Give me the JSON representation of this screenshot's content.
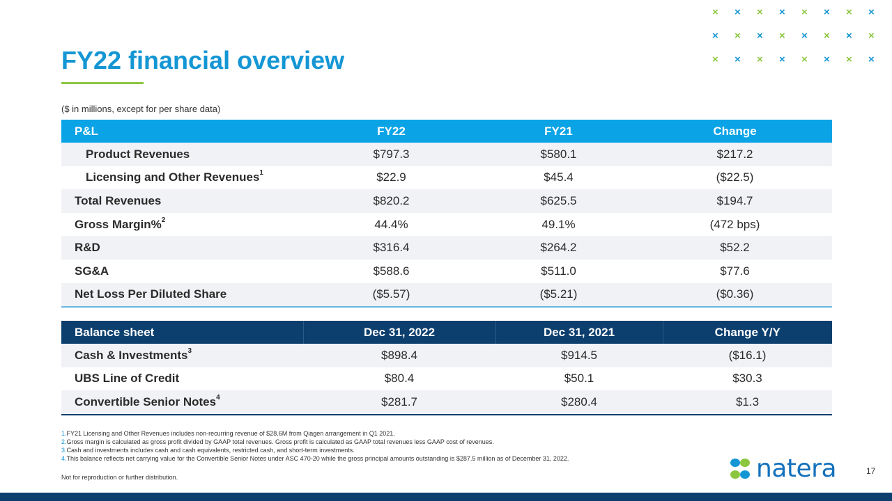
{
  "title": "FY22 financial overview",
  "subtitle": "($ in millions, except for per share data)",
  "colors": {
    "accent_blue": "#1496d4",
    "header_blue": "#0aa3e6",
    "navy": "#0c3f6e",
    "green": "#8cc63f"
  },
  "pl_table": {
    "headers": [
      "P&L",
      "FY22",
      "FY21",
      "Change"
    ],
    "rows": [
      {
        "label": "Product Revenues",
        "sup": "",
        "values": [
          "$797.3",
          "$580.1",
          "$217.2"
        ]
      },
      {
        "label": "Licensing and Other Revenues",
        "sup": "1",
        "values": [
          "$22.9",
          "$45.4",
          "($22.5)"
        ]
      },
      {
        "label": "Total Revenues",
        "sup": "",
        "values": [
          "$820.2",
          "$625.5",
          "$194.7"
        ]
      },
      {
        "label": "Gross Margin%",
        "sup": "2",
        "values": [
          "44.4%",
          "49.1%",
          "(472 bps)"
        ]
      },
      {
        "label": "R&D",
        "sup": "",
        "values": [
          "$316.4",
          "$264.2",
          "$52.2"
        ]
      },
      {
        "label": "SG&A",
        "sup": "",
        "values": [
          "$588.6",
          "$511.0",
          "$77.6"
        ]
      },
      {
        "label": "Net Loss Per Diluted Share",
        "sup": "",
        "values": [
          "($5.57)",
          "($5.21)",
          "($0.36)"
        ]
      }
    ]
  },
  "bs_table": {
    "headers": [
      "Balance sheet",
      "Dec 31, 2022",
      "Dec 31, 2021",
      "Change Y/Y"
    ],
    "rows": [
      {
        "label": "Cash & Investments",
        "sup": "3",
        "values": [
          "$898.4",
          "$914.5",
          "($16.1)"
        ]
      },
      {
        "label": "UBS Line of Credit",
        "sup": "",
        "values": [
          "$80.4",
          "$50.1",
          "$30.3"
        ]
      },
      {
        "label": "Convertible Senior Notes",
        "sup": "4",
        "values": [
          "$281.7",
          "$280.4",
          "$1.3"
        ]
      }
    ]
  },
  "footnotes": [
    {
      "num": "1.",
      "text": "FY21 Licensing and Other Revenues includes non-recurring revenue of $28.6M from Qiagen arrangement in Q1 2021."
    },
    {
      "num": "2.",
      "text": "Gross margin is calculated as gross profit divided by GAAP total revenues. Gross profit is calculated as GAAP total revenues less GAAP cost of revenues."
    },
    {
      "num": "3.",
      "text": "Cash and investments includes cash and cash equivalents, restricted cash, and short-term investments."
    },
    {
      "num": "4.",
      "text": "This balance reflects net carrying value for the Convertible Senior Notes under ASC 470-20 while the gross principal amounts outstanding is $287.5 million as of December 31, 2022."
    }
  ],
  "disclaimer": "Not for reproduction or further distribution.",
  "logo": {
    "text": "natera",
    "icon": "natera-logo-icon"
  },
  "page_number": "17",
  "decoration": {
    "icon": "x-pattern-icon",
    "symbol": "×"
  }
}
